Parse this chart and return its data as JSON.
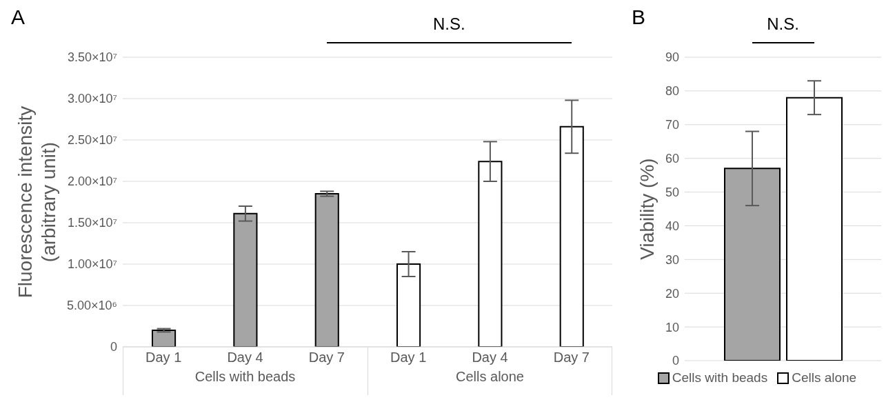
{
  "chart_data": [
    {
      "type": "bar",
      "title": "A",
      "ylabel": "Fluorescence intensity\n(arbitrary unit)",
      "categories": [
        "Day 1",
        "Day 4",
        "Day 7",
        "Day 1",
        "Day 4",
        "Day 7"
      ],
      "series": [
        {
          "name": "Cells with beads",
          "color": "#a5a5a5",
          "values": [
            2000000,
            16100000,
            18500000,
            null,
            null,
            null
          ],
          "errors": [
            200000,
            900000,
            300000,
            null,
            null,
            null
          ]
        },
        {
          "name": "Cells alone",
          "color": "#ffffff",
          "values": [
            null,
            null,
            null,
            10000000,
            22400000,
            26600000
          ],
          "errors": [
            null,
            null,
            null,
            1500000,
            2400000,
            3200000
          ]
        }
      ],
      "ylim": [
        0,
        35000000
      ],
      "yticks": [
        0,
        {
          "value": 5000000,
          "label": "5.00×10⁶"
        },
        {
          "value": 10000000,
          "label": "1.00×10⁷"
        },
        {
          "value": 15000000,
          "label": "1.50×10⁷"
        },
        {
          "value": 20000000,
          "label": "2.00×10⁷"
        },
        {
          "value": 25000000,
          "label": "2.50×10⁷"
        },
        {
          "value": 30000000,
          "label": "3.00×10⁷"
        },
        {
          "value": 35000000,
          "label": "3.50×10⁷"
        }
      ],
      "grid": "y",
      "annotations": [
        "N.S."
      ]
    },
    {
      "type": "bar",
      "title": "B",
      "ylabel": "Viability (%)",
      "categories": [
        null
      ],
      "series": [
        {
          "name": "Cells with beads",
          "color": "#a5a5a5",
          "values": [
            57
          ],
          "errors": [
            11
          ]
        },
        {
          "name": "Cells alone",
          "color": "#ffffff",
          "values": [
            78
          ],
          "errors": [
            5
          ]
        }
      ],
      "ylim": [
        0,
        90
      ],
      "yticks": [
        0,
        10,
        20,
        30,
        40,
        50,
        60,
        70,
        80,
        90
      ],
      "grid": "y",
      "legend": "bottom",
      "annotations": [
        "N.S."
      ]
    }
  ]
}
